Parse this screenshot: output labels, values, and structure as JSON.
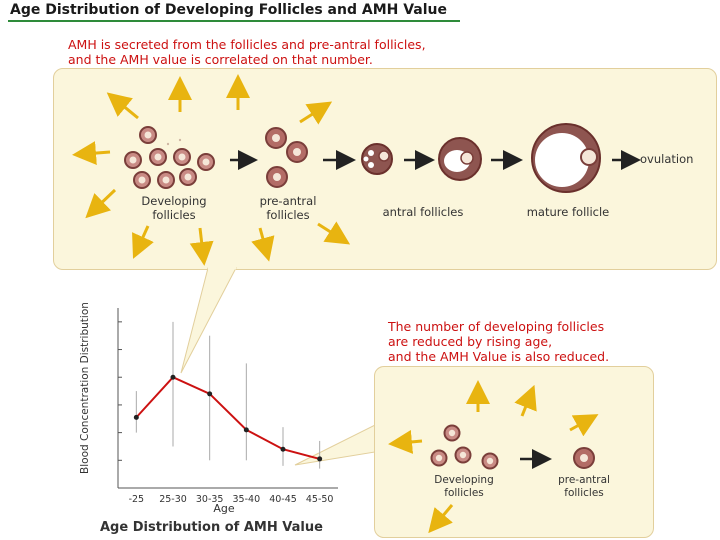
{
  "title": "Age Distribution of Developing Follicles and AMH Value",
  "top_note": {
    "line1": "AMH is secreted from the follicles and pre-antral follicles,",
    "line2": "and the AMH value is correlated on that number."
  },
  "top_diagram": {
    "developing_line1": "Developing",
    "developing_line2": "follicles",
    "preantral_line1": "pre-antral",
    "preantral_line2": "follicles",
    "antral": "antral follicles",
    "mature": "mature follicle",
    "ovulation": "ovulation"
  },
  "right_note": {
    "line1": "The number of developing follicles",
    "line2": "are reduced by rising age,",
    "line3": "and the AMH Value is also reduced."
  },
  "bottom_diagram": {
    "developing_line1": "Developing",
    "developing_line2": "follicles",
    "preantral_line1": "pre-antral",
    "preantral_line2": "follicles"
  },
  "chart_data": {
    "type": "line",
    "title": "Age Distribution of AMH Value",
    "xlabel": "Age",
    "ylabel": "Blood Concentration Distribution",
    "categories": [
      "-25",
      "25-30",
      "30-35",
      "35-40",
      "40-45",
      "45-50"
    ],
    "series": [
      {
        "values": [
          2.55,
          4.0,
          3.4,
          2.1,
          1.4,
          1.05
        ]
      }
    ],
    "ranges": [
      [
        2.0,
        3.5
      ],
      [
        1.5,
        6.0
      ],
      [
        1.0,
        5.5
      ],
      [
        1.0,
        4.5
      ],
      [
        0.8,
        2.2
      ],
      [
        0.7,
        1.7
      ]
    ],
    "ylim": [
      0,
      6.5
    ],
    "line_color": "#cc1111"
  }
}
